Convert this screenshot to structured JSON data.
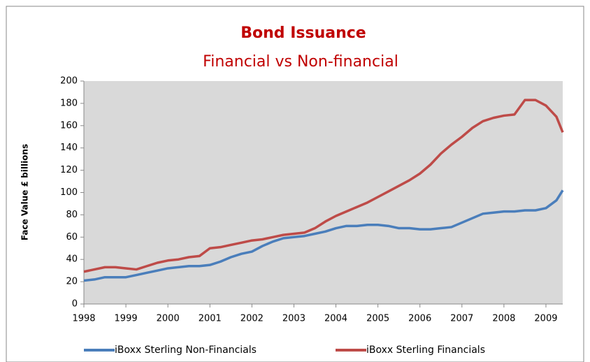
{
  "chart_data": {
    "type": "line",
    "title": "Bond Issuance",
    "subtitle": "Financial vs Non-financial",
    "y_label": "Face Value £ billions",
    "x": [
      1998,
      1998.25,
      1998.5,
      1998.75,
      1999,
      1999.25,
      1999.5,
      1999.75,
      2000,
      2000.25,
      2000.5,
      2000.75,
      2001,
      2001.25,
      2001.5,
      2001.75,
      2002,
      2002.25,
      2002.5,
      2002.75,
      2003,
      2003.25,
      2003.5,
      2003.75,
      2004,
      2004.25,
      2004.5,
      2004.75,
      2005,
      2005.25,
      2005.5,
      2005.75,
      2006,
      2006.25,
      2006.5,
      2006.75,
      2007,
      2007.25,
      2007.5,
      2007.75,
      2008,
      2008.25,
      2008.5,
      2008.75,
      2009,
      2009.25,
      2009.4
    ],
    "series": [
      {
        "name": "iBoxx Sterling Non-Financials",
        "color": "#4a7ebb",
        "values": [
          21,
          22,
          24,
          24,
          24,
          26,
          28,
          30,
          32,
          33,
          34,
          34,
          35,
          38,
          42,
          45,
          47,
          52,
          56,
          59,
          60,
          61,
          63,
          65,
          68,
          70,
          70,
          71,
          71,
          70,
          68,
          68,
          67,
          67,
          68,
          69,
          73,
          77,
          81,
          82,
          83,
          83,
          84,
          84,
          86,
          93,
          102
        ]
      },
      {
        "name": "iBoxx Sterling Financials",
        "color": "#be4b48",
        "values": [
          29,
          31,
          33,
          33,
          32,
          31,
          34,
          37,
          39,
          40,
          42,
          43,
          50,
          51,
          53,
          55,
          57,
          58,
          60,
          62,
          63,
          64,
          68,
          74,
          79,
          83,
          87,
          91,
          96,
          101,
          106,
          111,
          117,
          125,
          135,
          143,
          150,
          158,
          164,
          167,
          169,
          170,
          183,
          183,
          178,
          168,
          154
        ]
      }
    ],
    "xlim": [
      1998,
      2009.4
    ],
    "xticks": [
      1998,
      1999,
      2000,
      2001,
      2002,
      2003,
      2004,
      2005,
      2006,
      2007,
      2008,
      2009
    ],
    "ylim": [
      0,
      200
    ],
    "yticks": [
      0,
      20,
      40,
      60,
      80,
      100,
      120,
      140,
      160,
      180,
      200
    ],
    "grid": false,
    "legend": "bottom"
  }
}
